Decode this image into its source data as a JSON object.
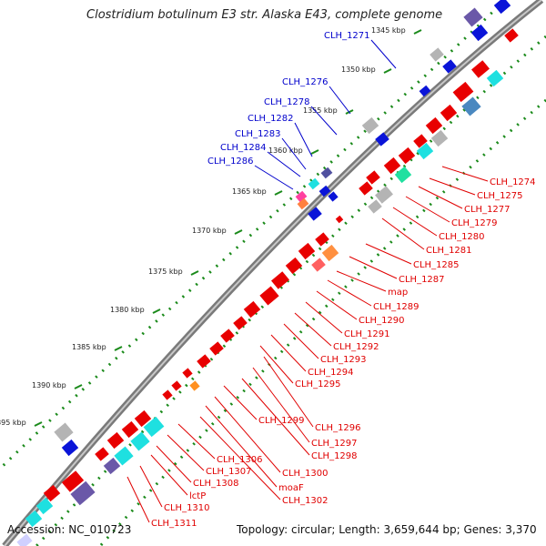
{
  "title": "Clostridium botulinum E3 str. Alaska E43, complete genome",
  "footer": {
    "accession": "Accession: NC_010723",
    "summary": "Topology: circular; Length: 3,659,644 bp; Genes: 3,370"
  },
  "kbp_ticks": [
    {
      "label": "1345 kbp",
      "t": 0.015
    },
    {
      "label": "1350 kbp",
      "t": 0.095
    },
    {
      "label": "1355 kbp",
      "t": 0.2
    },
    {
      "label": "1360 kbp",
      "t": 0.262
    },
    {
      "label": "1365 kbp",
      "t": 0.35
    },
    {
      "label": "1370 kbp",
      "t": 0.43
    },
    {
      "label": "1375 kbp",
      "t": 0.51
    },
    {
      "label": "1380 kbp",
      "t": 0.59
    },
    {
      "label": "1385 kbp",
      "t": 0.675
    },
    {
      "label": "1390 kbp",
      "t": 0.755
    },
    {
      "label": "1395 kbp",
      "t": 0.835
    }
  ],
  "blue_labels": [
    "CLH_1271",
    "CLH_1276",
    "CLH_1278",
    "CLH_1282",
    "CLH_1283",
    "CLH_1284",
    "CLH_1286"
  ],
  "red_labels": [
    "CLH_1274",
    "CLH_1275",
    "CLH_1277",
    "CLH_1279",
    "CLH_1280",
    "CLH_1281",
    "CLH_1285",
    "CLH_1287",
    "map",
    "CLH_1289",
    "CLH_1290",
    "CLH_1291",
    "CLH_1292",
    "CLH_1293",
    "CLH_1294",
    "CLH_1295",
    "CLH_1296",
    "CLH_1297",
    "CLH_1298",
    "CLH_1299",
    "CLH_1300",
    "moaF",
    "CLH_1302",
    "CLH_1306",
    "CLH_1307",
    "CLH_1308",
    "lctP",
    "CLH_1310",
    "CLH_1311"
  ],
  "colors": {
    "backbone": "#8c8c8c",
    "gene_red": "#e80000",
    "gene_blue": "#0a14d8",
    "gene_cyan": "#1ee0e0",
    "gene_grey": "#b4b4b4",
    "gene_purple": "#6a58a8",
    "dots_green": "#1a8a1a"
  }
}
